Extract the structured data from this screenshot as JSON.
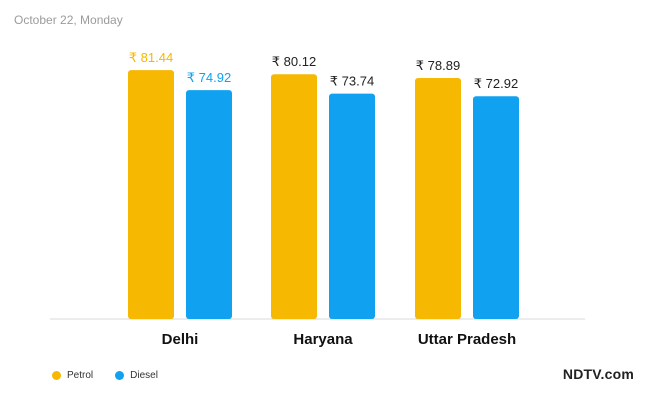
{
  "subtitle": "October 22, Monday",
  "brand": "NDTV.com",
  "colors": {
    "petrol": "#F6B800",
    "diesel": "#10A2F0",
    "axis": "#d9d9d9"
  },
  "chart_data": {
    "type": "bar",
    "title": "",
    "xlabel": "",
    "ylabel": "",
    "grid": false,
    "legend": "bottom-left",
    "currency_symbol": "₹",
    "ylim": [
      0,
      90
    ],
    "categories": [
      "Delhi",
      "Haryana",
      "Uttar Pradesh"
    ],
    "series": [
      {
        "name": "Petrol",
        "values": [
          81.44,
          80.12,
          78.89
        ]
      },
      {
        "name": "Diesel",
        "values": [
          74.92,
          73.74,
          72.92
        ]
      }
    ]
  }
}
